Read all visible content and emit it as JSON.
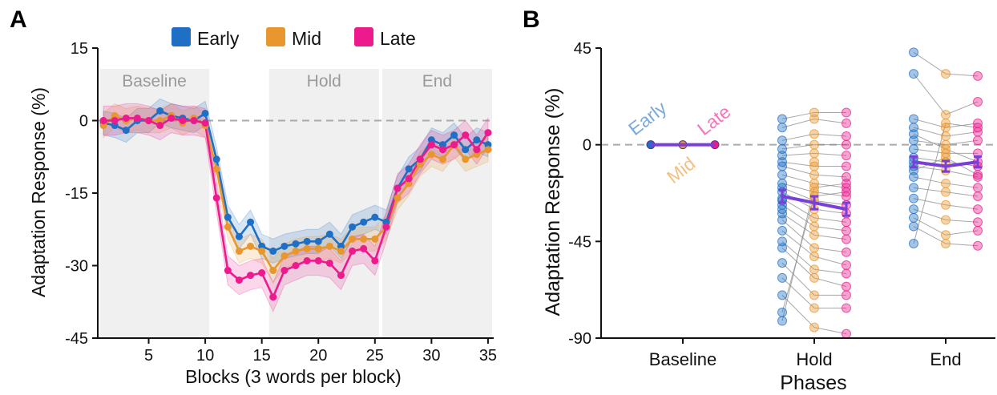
{
  "panels": {
    "a_letter": "A",
    "b_letter": "B"
  },
  "colors": {
    "early": "#1f6fc4",
    "mid": "#e8962e",
    "late": "#ec1a8c",
    "mean": "#7a3fd6",
    "phase_band": "#f0f0f0",
    "zero_line": "#aaaaaa"
  },
  "chart_data": [
    {
      "type": "line",
      "panel": "A",
      "xlabel": "Blocks (3 words per block)",
      "ylabel": "Adaptation Response (%)",
      "xlim": [
        1,
        35
      ],
      "ylim": [
        -45,
        15
      ],
      "xticks": [
        5,
        10,
        15,
        20,
        25,
        30,
        35
      ],
      "yticks": [
        15,
        0,
        -15,
        -30,
        -45
      ],
      "legend_position": "top",
      "phases": [
        {
          "name": "Baseline",
          "start": 1,
          "end": 10
        },
        {
          "name": "Hold",
          "start": 16,
          "end": 25
        },
        {
          "name": "End",
          "start": 26,
          "end": 35
        }
      ],
      "x": [
        1,
        2,
        3,
        4,
        5,
        6,
        7,
        8,
        9,
        10,
        11,
        12,
        13,
        14,
        15,
        16,
        17,
        18,
        19,
        20,
        21,
        22,
        23,
        24,
        25,
        26,
        27,
        28,
        29,
        30,
        31,
        32,
        33,
        34,
        35
      ],
      "series": [
        {
          "name": "Early",
          "color_key": "early",
          "values": [
            -0.5,
            -1,
            -2,
            0,
            0,
            2,
            1,
            0.5,
            0,
            1.5,
            -8,
            -20,
            -24,
            -21,
            -26,
            -27,
            -26,
            -25.5,
            -25,
            -25,
            -23.5,
            -26,
            -22,
            -21,
            -20,
            -21,
            -14,
            -10,
            -8,
            -4,
            -5,
            -3,
            -6,
            -4,
            -5
          ],
          "band": 2.5
        },
        {
          "name": "Mid",
          "color_key": "mid",
          "values": [
            -1,
            1,
            0,
            0.5,
            0,
            0,
            1,
            -0.5,
            0.5,
            -1,
            -10,
            -22,
            -27,
            -26,
            -27,
            -31,
            -28,
            -27,
            -26.5,
            -26.5,
            -26,
            -27,
            -24.5,
            -24.5,
            -24.5,
            -22,
            -16,
            -13,
            -9,
            -7,
            -8,
            -5,
            -8,
            -7,
            -6
          ],
          "band": 2.5
        },
        {
          "name": "Late",
          "color_key": "late",
          "values": [
            0,
            0,
            0.5,
            0.5,
            0,
            -1,
            0.5,
            0,
            0,
            -0.5,
            -16,
            -31,
            -33,
            -32,
            -31.5,
            -36.5,
            -31,
            -30,
            -29,
            -29,
            -29.5,
            -32,
            -27,
            -26.5,
            -29,
            -22,
            -14,
            -12,
            -8,
            -5,
            -6,
            -5,
            -3,
            -6,
            -2.5
          ],
          "band": 3
        }
      ]
    },
    {
      "type": "scatter",
      "panel": "B",
      "xlabel": "Phases",
      "ylabel": "Adaptation Response (%)",
      "categories": [
        "Baseline",
        "Hold",
        "End"
      ],
      "ylim": [
        -90,
        45
      ],
      "yticks": [
        45,
        0,
        -45,
        -90
      ],
      "series_annotations": [
        "Early",
        "Mid",
        "Late"
      ],
      "phases": [
        {
          "name": "Baseline",
          "early": [
            0
          ],
          "mid": [
            0
          ],
          "late": [
            0
          ],
          "mean": [
            0,
            0,
            0
          ],
          "sem": [
            0,
            0,
            0
          ]
        },
        {
          "name": "Hold",
          "early": [
            12,
            8,
            2,
            -2,
            -5,
            -8,
            -10,
            -14,
            -18,
            -20,
            -22,
            -25,
            -28,
            -32,
            -35,
            -40,
            -45,
            -48,
            -55,
            -62,
            -70,
            -78,
            -82,
            -30,
            -26
          ],
          "mid": [
            15,
            12,
            5,
            0,
            -4,
            -10,
            -14,
            -18,
            -22,
            -26,
            -30,
            -34,
            -38,
            -42,
            -48,
            -52,
            -58,
            -62,
            -70,
            -76,
            -85,
            -24,
            -20,
            -8
          ],
          "late": [
            15,
            10,
            4,
            0,
            -5,
            -10,
            -15,
            -20,
            -24,
            -28,
            -32,
            -36,
            -40,
            -44,
            -50,
            -56,
            -60,
            -66,
            -70,
            -76,
            -88,
            -22,
            -18
          ],
          "mean": [
            -24,
            -27,
            -30
          ],
          "sem": [
            3,
            3,
            3
          ]
        },
        {
          "name": "End",
          "early": [
            43,
            33,
            12,
            8,
            2,
            -2,
            -6,
            -10,
            -15,
            -20,
            -25,
            -30,
            -34,
            -38,
            -46,
            5,
            -12,
            -8
          ],
          "mid": [
            33,
            14,
            8,
            4,
            0,
            -4,
            -8,
            -12,
            -18,
            -22,
            -28,
            -35,
            -42,
            -46,
            10,
            -2,
            -6
          ],
          "late": [
            32,
            20,
            10,
            6,
            2,
            -4,
            -10,
            -15,
            -20,
            -24,
            -30,
            -36,
            -40,
            -47,
            8,
            -8,
            -14
          ],
          "mean": [
            -8,
            -10,
            -8
          ],
          "sem": [
            2.5,
            2.5,
            2.5
          ]
        }
      ]
    }
  ]
}
